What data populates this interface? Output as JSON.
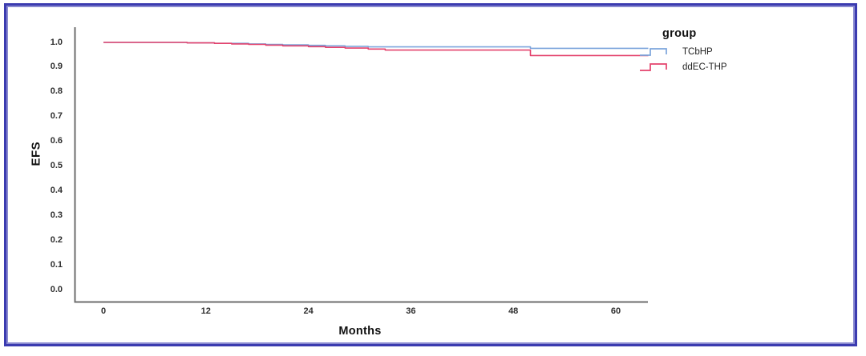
{
  "chart_data": {
    "type": "line",
    "chart_style": "kaplan_meier_step",
    "title": "",
    "xlabel": "Months",
    "ylabel": "EFS",
    "xlim": [
      -3.4,
      63.8
    ],
    "ylim": [
      0.0,
      1.06
    ],
    "xticks": [
      0,
      12,
      24,
      36,
      48,
      60
    ],
    "yticks": [
      "1.0",
      "0.9",
      "0.8",
      "0.7",
      "0.6",
      "0.5",
      "0.4",
      "0.3",
      "0.2",
      "0.1",
      "0.0"
    ],
    "grid": false,
    "legend": {
      "title": "group",
      "position": "top-right"
    },
    "series": [
      {
        "name": "TCbHP",
        "color": "#7CA5DC",
        "points": [
          [
            0,
            1.0
          ],
          [
            9.8,
            0.998
          ],
          [
            13,
            0.996
          ],
          [
            17,
            0.994
          ],
          [
            19,
            0.992
          ],
          [
            21,
            0.99
          ],
          [
            24,
            0.988
          ],
          [
            26,
            0.986
          ],
          [
            28.3,
            0.984
          ],
          [
            31,
            0.982
          ],
          [
            50,
            0.976
          ],
          [
            63.8,
            0.976
          ]
        ]
      },
      {
        "name": "ddEC-THP",
        "color": "#E4426C",
        "points": [
          [
            0,
            1.0
          ],
          [
            9.8,
            0.998
          ],
          [
            13,
            0.996
          ],
          [
            15,
            0.994
          ],
          [
            17,
            0.992
          ],
          [
            19,
            0.989
          ],
          [
            21,
            0.986
          ],
          [
            24,
            0.983
          ],
          [
            26,
            0.98
          ],
          [
            28.3,
            0.977
          ],
          [
            31,
            0.973
          ],
          [
            33,
            0.969
          ],
          [
            50,
            0.947
          ],
          [
            63.8,
            0.947
          ]
        ]
      }
    ]
  },
  "colors": {
    "frame_border": "#3B3BB0",
    "frame_border_inner": "#8A8AD0",
    "axis_line": "#6E6E6E",
    "tick_text": "#2E2E2E",
    "title_text": "#111111",
    "background": "#FFFFFF"
  }
}
